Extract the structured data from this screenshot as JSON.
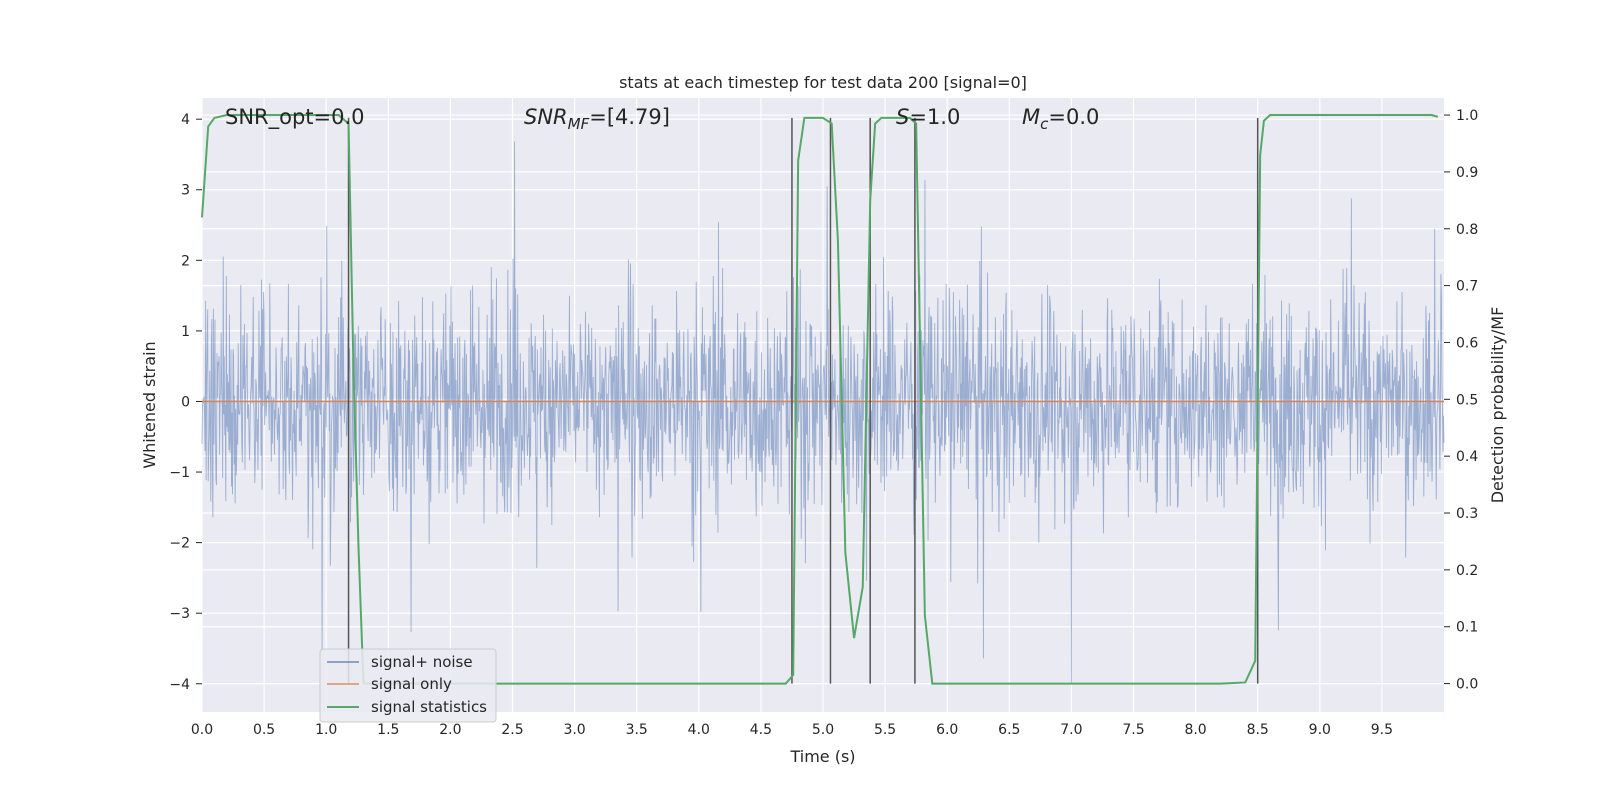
{
  "chart_data": {
    "type": "line",
    "title": "stats at each timestep for test data 200 [signal=0]",
    "xlabel": "Time (s)",
    "ylabel_left": "Whitened strain",
    "ylabel_right": "Detection probability/MF",
    "xlim": [
      0,
      10
    ],
    "ylim_left": [
      -4.4,
      4.3
    ],
    "ylim_right": [
      -0.05,
      1.03
    ],
    "xticks": [
      "0.0",
      "0.5",
      "1.0",
      "1.5",
      "2.0",
      "2.5",
      "3.0",
      "3.5",
      "4.0",
      "4.5",
      "5.0",
      "5.5",
      "6.0",
      "6.5",
      "7.0",
      "7.5",
      "8.0",
      "8.5",
      "9.0",
      "9.5"
    ],
    "yticks_left": [
      "4",
      "3",
      "2",
      "1",
      "0",
      "−1",
      "−2",
      "−3",
      "−4"
    ],
    "yticks_right": [
      "1.0",
      "0.9",
      "0.8",
      "0.7",
      "0.6",
      "0.5",
      "0.4",
      "0.3",
      "0.2",
      "0.1",
      "0.0"
    ],
    "grid": true,
    "background": "#eaeaf2",
    "annotations": {
      "snr_opt": "SNR_opt=0.0",
      "snr_mf": "SNR",
      "snr_mf_sub": "MF",
      "snr_mf_val": "=[4.79]",
      "s": "S",
      "s_val": "=1.0",
      "mc": "M",
      "mc_sub": "c",
      "mc_val": "=0.0"
    },
    "legend_position": "lower-left",
    "series": [
      {
        "name": "signal+ noise",
        "color": "#4c72b0",
        "axis": "left",
        "description_envelope": {
          "typical_amplitude": 1.6,
          "max_amplitude": 4.0
        }
      },
      {
        "name": "signal only",
        "color": "#dd8452",
        "axis": "left",
        "x": [
          0,
          10
        ],
        "y": [
          0,
          0
        ]
      },
      {
        "name": "signal statistics",
        "color": "#55a868",
        "axis": "right",
        "x": [
          0,
          0.05,
          0.1,
          0.2,
          0.5,
          1.0,
          1.1,
          1.18,
          1.22,
          1.26,
          1.3,
          1.5,
          2.0,
          3.0,
          4.0,
          4.5,
          4.7,
          4.76,
          4.8,
          4.85,
          4.92,
          5.0,
          5.07,
          5.12,
          5.18,
          5.25,
          5.32,
          5.38,
          5.42,
          5.47,
          5.55,
          5.7,
          5.75,
          5.82,
          5.88,
          5.95,
          6.5,
          7.0,
          8.0,
          8.2,
          8.4,
          8.48,
          8.52,
          8.55,
          8.6,
          8.7,
          9.0,
          9.5,
          9.9,
          9.95
        ],
        "y": [
          0.82,
          0.98,
          0.995,
          1.0,
          1.0,
          1.0,
          1.0,
          0.985,
          0.55,
          0.24,
          0.0,
          0.0,
          0.0,
          0.0,
          0.0,
          0.0,
          0.0,
          0.015,
          0.92,
          0.995,
          0.995,
          0.995,
          0.985,
          0.78,
          0.23,
          0.08,
          0.17,
          0.85,
          0.985,
          0.995,
          0.995,
          0.995,
          0.985,
          0.12,
          0.0,
          0.0,
          0.0,
          0.0,
          0.0,
          0.0,
          0.002,
          0.04,
          0.93,
          0.99,
          1.0,
          1.0,
          1.0,
          1.0,
          1.0,
          0.997
        ]
      }
    ],
    "vlines": {
      "color": "#555555",
      "x": [
        1.18,
        4.75,
        5.06,
        5.38,
        5.74,
        8.5
      ]
    }
  }
}
